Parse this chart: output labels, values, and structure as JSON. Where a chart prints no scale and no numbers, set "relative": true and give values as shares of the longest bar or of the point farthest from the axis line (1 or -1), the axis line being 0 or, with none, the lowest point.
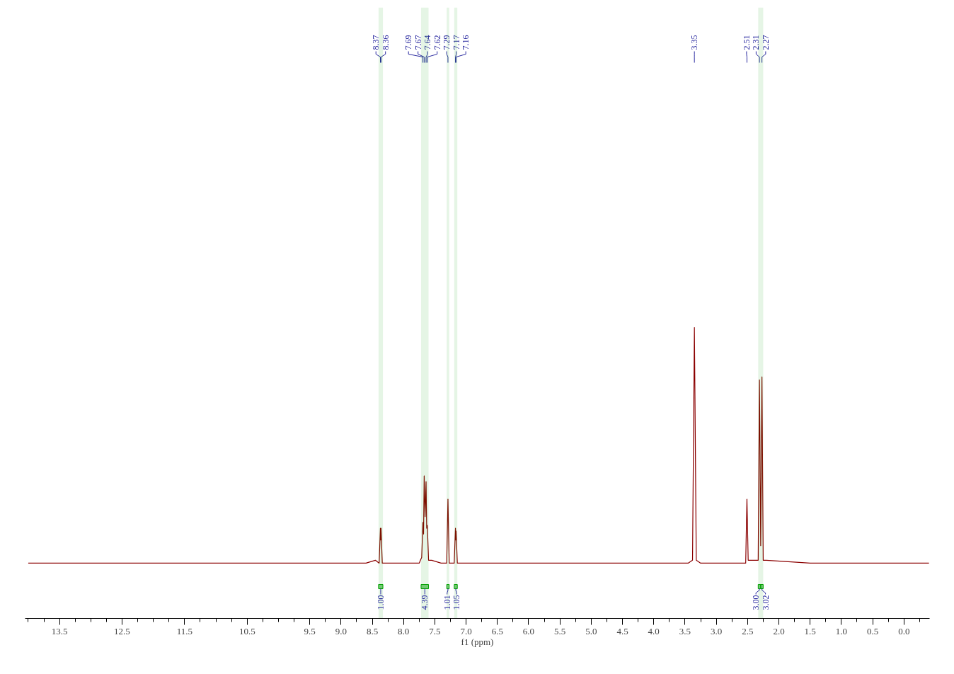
{
  "chart_data": {
    "type": "line",
    "relative": true,
    "xlabel": "f1 (ppm)",
    "xlim": [
      14.05,
      -0.41
    ],
    "xticks": [
      13.5,
      12.5,
      11.5,
      10.5,
      9.5,
      {
        "value": 9,
        "label": "9.0"
      },
      8.5,
      {
        "value": 8,
        "label": "8.0"
      },
      7.5,
      {
        "value": 7,
        "label": "7.0"
      },
      6.5,
      {
        "value": 6,
        "label": "6.0"
      },
      5.5,
      {
        "value": 5,
        "label": "5.0"
      },
      4.5,
      {
        "value": 4,
        "label": "4.0"
      },
      3.5,
      {
        "value": 3,
        "label": "3.0"
      },
      2.5,
      {
        "value": 2,
        "label": "2.0"
      },
      1.5,
      {
        "value": 1,
        "label": "1.0"
      },
      0.5,
      {
        "value": 0,
        "label": "0.0"
      }
    ],
    "x": [
      14.0,
      12.0,
      10.0,
      8.6,
      8.45,
      8.39,
      8.37,
      8.365,
      8.36,
      8.34,
      8.2,
      7.75,
      7.71,
      7.69,
      7.68,
      7.67,
      7.655,
      7.64,
      7.63,
      7.62,
      7.6,
      7.55,
      7.4,
      7.31,
      7.29,
      7.27,
      7.19,
      7.17,
      7.165,
      7.16,
      7.14,
      6.0,
      4.0,
      3.45,
      3.38,
      3.35,
      3.32,
      3.25,
      2.6,
      2.53,
      2.51,
      2.49,
      2.33,
      2.31,
      2.29,
      2.27,
      2.25,
      2.2,
      1.5,
      0.0,
      -0.4
    ],
    "series": [
      {
        "color": "#8b0000",
        "values": [
          0.19,
          0.19,
          0.19,
          0.19,
          0.2,
          0.19,
          0.31,
          0.27,
          0.31,
          0.19,
          0.19,
          0.19,
          0.21,
          0.33,
          0.29,
          0.49,
          0.35,
          0.47,
          0.31,
          0.32,
          0.2,
          0.2,
          0.19,
          0.19,
          0.41,
          0.19,
          0.19,
          0.31,
          0.27,
          0.3,
          0.19,
          0.19,
          0.19,
          0.19,
          0.2,
          1.0,
          0.2,
          0.19,
          0.19,
          0.19,
          0.41,
          0.2,
          0.2,
          0.82,
          0.25,
          0.83,
          0.2,
          0.2,
          0.19,
          0.19,
          0.19
        ]
      }
    ],
    "annotations": [
      {
        "text": "8.37",
        "x": 8.37
      },
      {
        "text": "8.36",
        "x": 8.36
      },
      {
        "text": "7.69",
        "x": 7.69
      },
      {
        "text": "7.67",
        "x": 7.67
      },
      {
        "text": "7.64",
        "x": 7.64
      },
      {
        "text": "7.62",
        "x": 7.62
      },
      {
        "text": "7.29",
        "x": 7.29
      },
      {
        "text": "7.17",
        "x": 7.17
      },
      {
        "text": "7.16",
        "x": 7.16
      },
      {
        "text": "3.35",
        "x": 3.35
      },
      {
        "text": "2.51",
        "x": 2.51
      },
      {
        "text": "2.31",
        "x": 2.31
      },
      {
        "text": "2.27",
        "x": 2.27
      }
    ],
    "bands": [
      {
        "axis": "x",
        "from": 8.4,
        "to": 8.33,
        "label": "1.00",
        "color": "#00a000"
      },
      {
        "axis": "x",
        "from": 7.72,
        "to": 7.6,
        "label": "4.39",
        "color": "#00a000"
      },
      {
        "axis": "x",
        "from": 7.31,
        "to": 7.27,
        "label": "1.01",
        "color": "#00a000"
      },
      {
        "axis": "x",
        "from": 7.19,
        "to": 7.14,
        "label": "1.05",
        "color": "#00a000"
      },
      {
        "axis": "x",
        "from": 2.33,
        "to": 2.29,
        "label": "3.00",
        "color": "#00a000"
      },
      {
        "axis": "x",
        "from": 2.29,
        "to": 2.25,
        "label": "3.02",
        "color": "#00a000"
      }
    ]
  }
}
